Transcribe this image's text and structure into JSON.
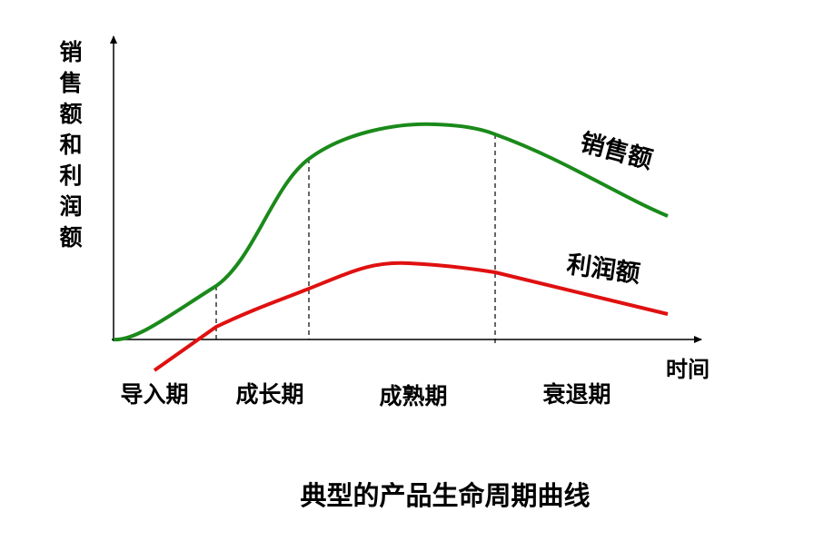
{
  "axes": {
    "y_label": "销售额和利润额",
    "x_label": "时间"
  },
  "curves": [
    {
      "label": "销售额"
    },
    {
      "label": "利润额"
    }
  ],
  "phases": [
    "导入期",
    "成长期",
    "成熟期",
    "衰退期"
  ],
  "caption": "典型的产品生命周期曲线"
}
